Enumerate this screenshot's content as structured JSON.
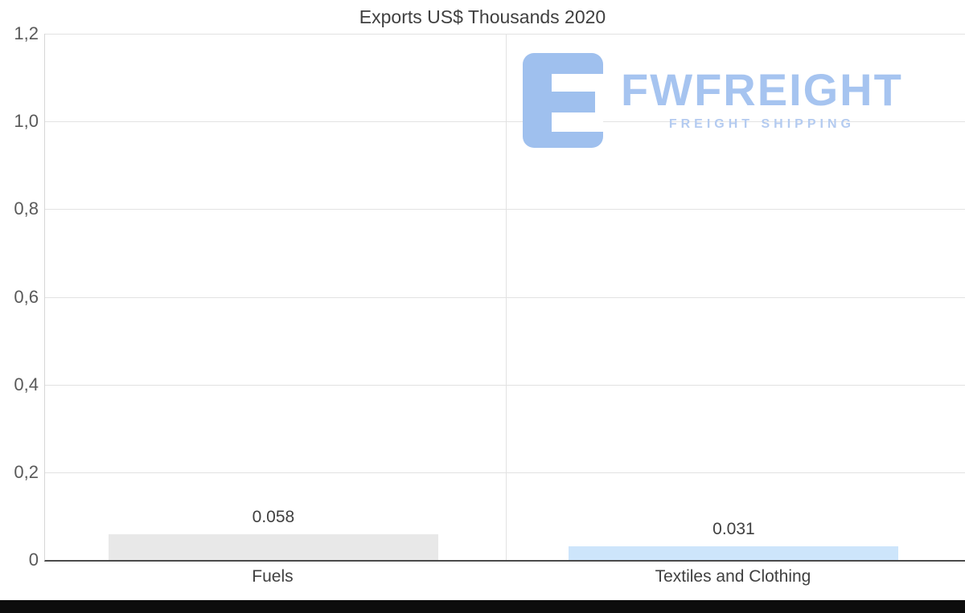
{
  "title": "Exports US$ Thousands 2020",
  "watermark": {
    "brand": "FWFREIGHT",
    "tagline": "FREIGHT SHIPPING",
    "logo_color": "#9fc0ee"
  },
  "chart_data": {
    "type": "bar",
    "title": "Exports US$ Thousands 2020",
    "categories": [
      "Fuels",
      "Textiles and Clothing"
    ],
    "values": [
      0.058,
      0.031
    ],
    "value_labels": [
      "0.058",
      "0.031"
    ],
    "bar_colors": [
      "#e8e8e8",
      "#cde5fb"
    ],
    "xlabel": "",
    "ylabel": "",
    "ylim": [
      0,
      1.2
    ],
    "yticks": [
      0,
      0.2,
      0.4,
      0.6,
      0.8,
      1.0,
      1.2
    ],
    "ytick_labels": [
      "0",
      "0,2",
      "0,4",
      "0,6",
      "0,8",
      "1,0",
      "1,2"
    ],
    "grid": true,
    "legend": false,
    "axis_color": "#4a4a4a",
    "grid_color": "#e2e2e2"
  }
}
